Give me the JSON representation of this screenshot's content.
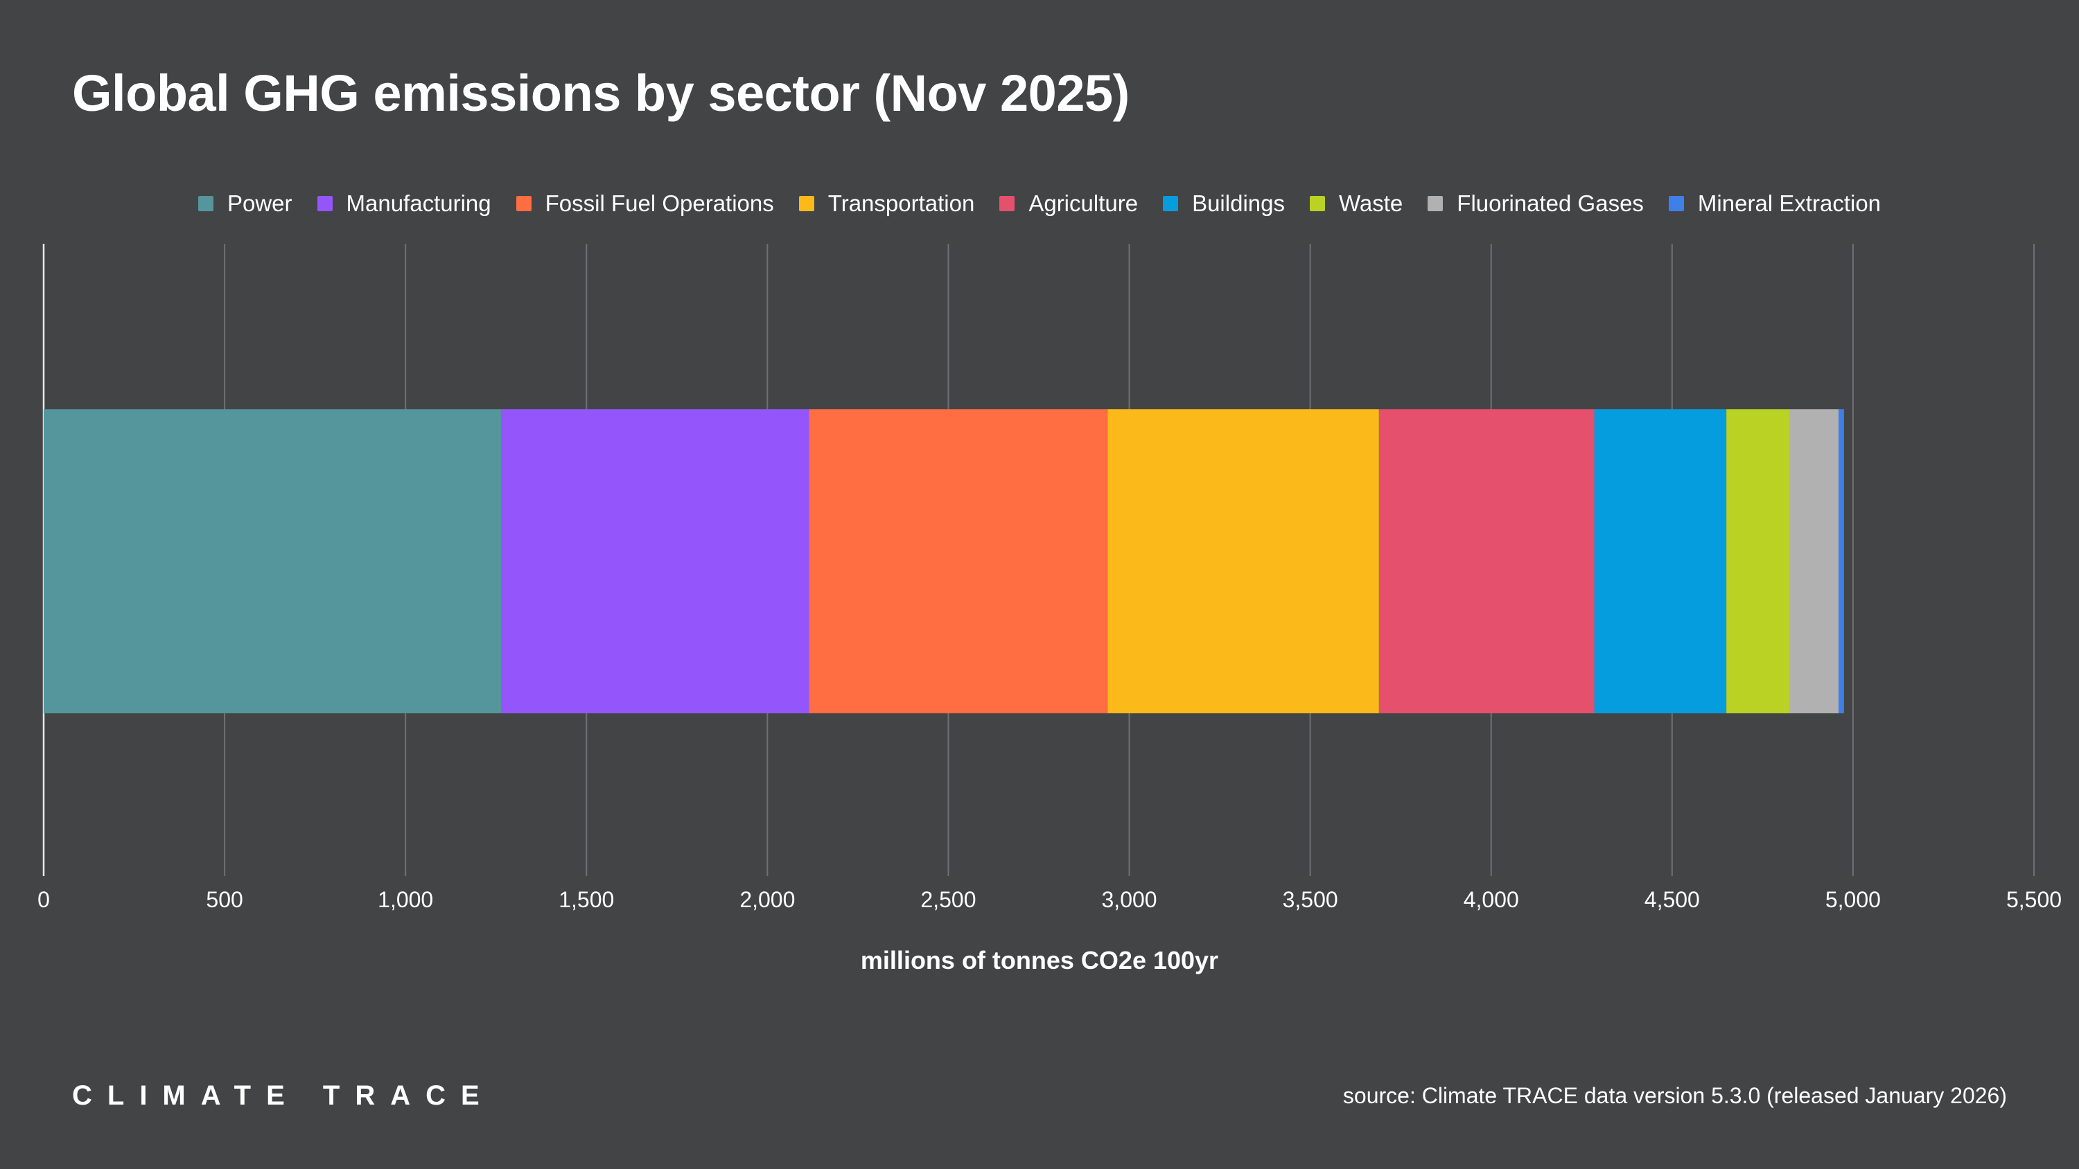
{
  "title": "Global GHG emissions by sector (Nov 2025)",
  "brand": "CLIMATE TRACE",
  "source": "source: Climate TRACE data version 5.3.0 (released January 2026)",
  "chart_data": {
    "type": "bar",
    "orientation": "horizontal",
    "stacked": true,
    "title": "Global GHG emissions by sector (Nov 2025)",
    "xlabel": "millions of tonnes CO2e 100yr",
    "ylabel": "",
    "xlim": [
      0,
      5500
    ],
    "xticks": [
      0,
      500,
      1000,
      1500,
      2000,
      2500,
      3000,
      3500,
      4000,
      4500,
      5000,
      5500
    ],
    "xtick_labels": [
      "0",
      "500",
      "1,000",
      "1,500",
      "2,000",
      "2,500",
      "3,000",
      "3,500",
      "4,000",
      "4,500",
      "5,000",
      "5,500"
    ],
    "grid": true,
    "legend_position": "top-center",
    "categories": [
      ""
    ],
    "series": [
      {
        "name": "Power",
        "values": [
          1265
        ],
        "color": "#55959C"
      },
      {
        "name": "Manufacturing",
        "values": [
          850
        ],
        "color": "#9455FB"
      },
      {
        "name": "Fossil Fuel Operations",
        "values": [
          825
        ],
        "color": "#FF6D42"
      },
      {
        "name": "Transportation",
        "values": [
          750
        ],
        "color": "#FBBA19"
      },
      {
        "name": "Agriculture",
        "values": [
          595
        ],
        "color": "#E5506C"
      },
      {
        "name": "Buildings",
        "values": [
          365
        ],
        "color": "#059DDE"
      },
      {
        "name": "Waste",
        "values": [
          175
        ],
        "color": "#BAD223"
      },
      {
        "name": "Fluorinated Gases",
        "values": [
          135
        ],
        "color": "#B1B1B2"
      },
      {
        "name": "Mineral Extraction",
        "values": [
          15
        ],
        "color": "#3F7FEA"
      }
    ]
  }
}
